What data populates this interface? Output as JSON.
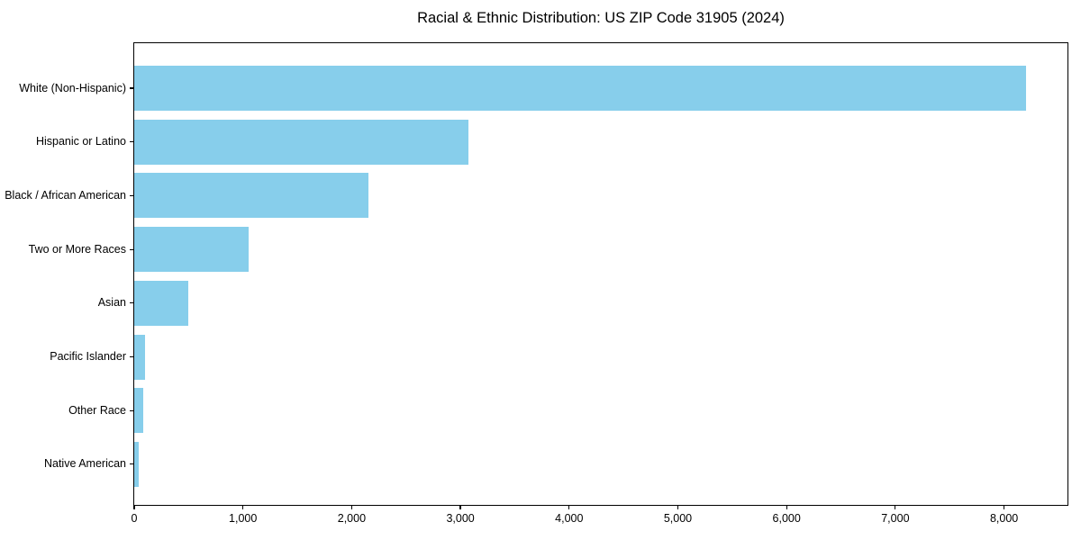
{
  "chart": {
    "title": "Racial & Ethnic Distribution: US ZIP Code 31905 (2024)"
  },
  "chart_data": {
    "type": "bar",
    "orientation": "horizontal",
    "title": "Racial & Ethnic Distribution: US ZIP Code 31905 (2024)",
    "xlabel": "",
    "ylabel": "",
    "categories": [
      "White (Non-Hispanic)",
      "Hispanic or Latino",
      "Black / African American",
      "Two or More Races",
      "Asian",
      "Pacific Islander",
      "Other Race",
      "Native American"
    ],
    "values": [
      8200,
      3070,
      2150,
      1050,
      500,
      100,
      85,
      40
    ],
    "xlim": [
      0,
      8600
    ],
    "x_ticks": [
      0,
      1000,
      2000,
      3000,
      4000,
      5000,
      6000,
      7000,
      8000
    ],
    "x_tick_labels": [
      "0",
      "1,000",
      "2,000",
      "3,000",
      "4,000",
      "5,000",
      "6,000",
      "7,000",
      "8,000"
    ],
    "bar_color": "#87CEEB",
    "spine_color": "#000000",
    "text_color": "#000000",
    "grid": false,
    "legend": null
  }
}
